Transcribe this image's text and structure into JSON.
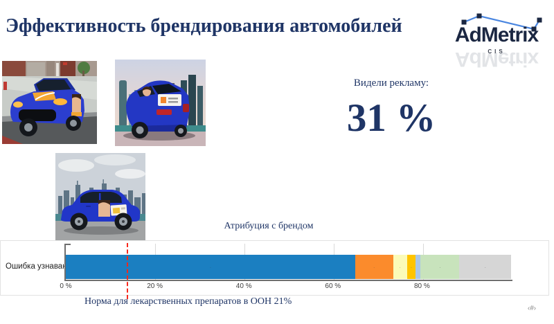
{
  "slide": {
    "title": "Эффективность брендирования автомобилей",
    "page_number": "‹#›",
    "title_color": "#1f3566",
    "background": "#ffffff"
  },
  "logo": {
    "brand": "AdMetrix",
    "subtitle": "CIS",
    "text_color": "#1b2742",
    "line_color": "#4a86e0"
  },
  "stat": {
    "label": "Видели рекламу:",
    "value": "31 %",
    "color": "#1f3566"
  },
  "images": {
    "photo_1": "car-branding-front-three-quarter-view",
    "photo_2": "car-branding-rear-three-quarter-view",
    "photo_3": "car-branding-side-view"
  },
  "chart_data": {
    "type": "bar",
    "orientation": "horizontal-stacked",
    "title": "Атрибуция с брендом",
    "category": "Ошибка узнавания",
    "x_axis": {
      "range": [
        0,
        100
      ],
      "ticks": [
        {
          "label": "0 %",
          "value": 0
        },
        {
          "label": "20 %",
          "value": 20
        },
        {
          "label": "40 %",
          "value": 40
        },
        {
          "label": "60 %",
          "value": 60
        },
        {
          "label": "80 %",
          "value": 80
        }
      ]
    },
    "segments": [
      {
        "value": 65.0,
        "color": "#1b7fc1",
        "label": "-"
      },
      {
        "value": 8.5,
        "color": "#fb8b2c",
        "label": "-"
      },
      {
        "value": 3.1,
        "color": "#fbfbb8",
        "label": "-"
      },
      {
        "value": 2.0,
        "color": "#ffc400",
        "label": "-"
      },
      {
        "value": 1.1,
        "color": "#a9c7e9",
        "label": ""
      },
      {
        "value": 8.7,
        "color": "#c8e3bc",
        "label": "-"
      },
      {
        "value": 11.6,
        "color": "#d6d6d6",
        "label": "-"
      }
    ],
    "reference_line": {
      "position_pct": 14,
      "color": "#f7281c",
      "style": "dashed"
    },
    "annotation": "Норма для лекарственных препаратов в ООН 21%",
    "grid": true,
    "legend": false
  }
}
